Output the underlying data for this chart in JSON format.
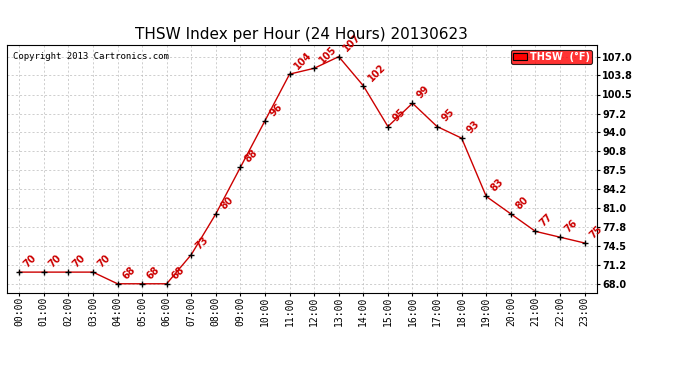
{
  "title": "THSW Index per Hour (24 Hours) 20130623",
  "copyright": "Copyright 2013 Cartronics.com",
  "legend_label": "THSW  (°F)",
  "hours": [
    0,
    1,
    2,
    3,
    4,
    5,
    6,
    7,
    8,
    9,
    10,
    11,
    12,
    13,
    14,
    15,
    16,
    17,
    18,
    19,
    20,
    21,
    22,
    23
  ],
  "values": [
    70,
    70,
    70,
    70,
    68,
    68,
    68,
    73,
    80,
    88,
    96,
    104,
    105,
    107,
    102,
    95,
    99,
    95,
    93,
    83,
    80,
    77,
    76,
    75
  ],
  "xlabels": [
    "00:00",
    "01:00",
    "02:00",
    "03:00",
    "04:00",
    "05:00",
    "06:00",
    "07:00",
    "08:00",
    "09:00",
    "10:00",
    "11:00",
    "12:00",
    "13:00",
    "14:00",
    "15:00",
    "16:00",
    "17:00",
    "18:00",
    "19:00",
    "20:00",
    "21:00",
    "22:00",
    "23:00"
  ],
  "ytick_vals": [
    68.0,
    71.2,
    74.5,
    77.8,
    81.0,
    84.2,
    87.5,
    90.8,
    94.0,
    97.2,
    100.5,
    103.8,
    107.0
  ],
  "ytick_labels": [
    "68.0",
    "71.2",
    "74.5",
    "77.8",
    "81.0",
    "84.2",
    "87.5",
    "90.8",
    "94.0",
    "97.2",
    "100.5",
    "103.8",
    "107.0"
  ],
  "ylim": [
    66.5,
    109.0
  ],
  "xlim": [
    -0.5,
    23.5
  ],
  "line_color": "#cc0000",
  "marker_color": "black",
  "label_color": "#cc0000",
  "bg_color": "white",
  "grid_color": "#bbbbbb",
  "title_fontsize": 11,
  "tick_fontsize": 7,
  "annotation_fontsize": 7,
  "copyright_fontsize": 6.5,
  "legend_fontsize": 7
}
